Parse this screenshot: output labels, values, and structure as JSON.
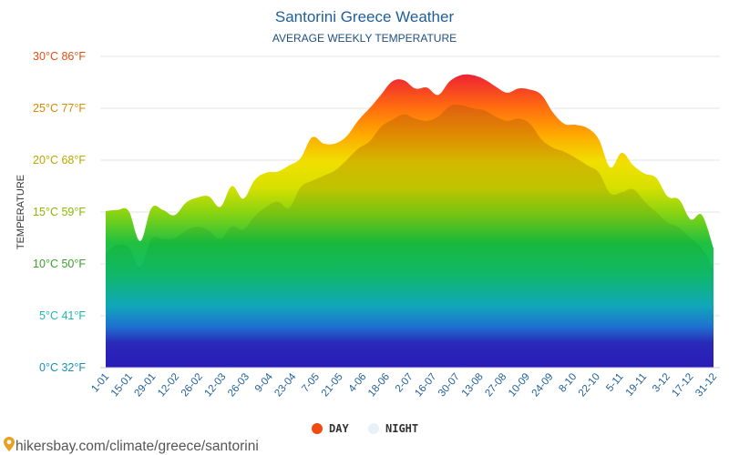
{
  "chart_data": {
    "type": "area",
    "title": "Santorini Greece Weather",
    "subtitle": "AVERAGE WEEKLY TEMPERATURE",
    "ylabel": "TEMPERATURE",
    "ylim": [
      0,
      30
    ],
    "yticks": [
      {
        "value": 0,
        "label": "0°C 32°F",
        "color": "#1a8fb8"
      },
      {
        "value": 5,
        "label": "5°C 41°F",
        "color": "#1ab8b0"
      },
      {
        "value": 10,
        "label": "10°C 50°F",
        "color": "#3aa02a"
      },
      {
        "value": 15,
        "label": "15°C 59°F",
        "color": "#8ab800"
      },
      {
        "value": 20,
        "label": "20°C 68°F",
        "color": "#b8a800"
      },
      {
        "value": 25,
        "label": "25°C 77°F",
        "color": "#d88a00"
      },
      {
        "value": 30,
        "label": "30°C 86°F",
        "color": "#e05010"
      }
    ],
    "x_labels": [
      "1-01",
      "15-01",
      "29-01",
      "12-02",
      "26-02",
      "12-03",
      "26-03",
      "9-04",
      "23-04",
      "7-05",
      "21-05",
      "4-06",
      "18-06",
      "2-07",
      "16-07",
      "30-07",
      "13-08",
      "27-08",
      "10-09",
      "24-09",
      "8-10",
      "22-10",
      "5-11",
      "19-11",
      "3-12",
      "17-12",
      "31-12"
    ],
    "series": [
      {
        "name": "DAY",
        "color": "#f04a10",
        "values": [
          15.1,
          15.2,
          15.1,
          12.2,
          15.4,
          15.2,
          14.7,
          15.9,
          16.4,
          16.5,
          15.5,
          17.5,
          16.3,
          18.1,
          18.8,
          18.9,
          19.5,
          20.2,
          22.2,
          21.6,
          21.6,
          22.3,
          23.8,
          25.0,
          26.3,
          27.6,
          27.7,
          26.9,
          27.0,
          26.3,
          27.6,
          28.2,
          28.2,
          27.8,
          27.1,
          26.5,
          26.9,
          26.8,
          26.3,
          24.6,
          23.5,
          23.4,
          23.1,
          22.0,
          19.3,
          20.7,
          19.5,
          18.7,
          18.3,
          16.5,
          16.2,
          14.3,
          14.7,
          11.5
        ]
      },
      {
        "name": "NIGHT",
        "color": "#e8f0f8",
        "values": [
          11.1,
          11.8,
          11.6,
          9.7,
          12.4,
          12.4,
          12.5,
          13.2,
          13.6,
          13.2,
          12.4,
          13.6,
          13.3,
          14.6,
          15.5,
          16.0,
          15.4,
          17.4,
          18.0,
          18.5,
          19.0,
          20.0,
          21.1,
          21.8,
          23.2,
          23.9,
          24.4,
          24.0,
          23.8,
          24.2,
          25.2,
          25.3,
          25.0,
          24.8,
          24.2,
          23.8,
          24.0,
          23.5,
          22.0,
          21.2,
          20.8,
          20.2,
          19.5,
          18.8,
          16.8,
          16.9,
          17.2,
          16.0,
          15.0,
          14.0,
          13.5,
          12.5,
          11.5,
          9.5
        ]
      }
    ],
    "legend_position": "bottom-center",
    "grid": true
  },
  "footer": {
    "source": "hikersbay.com/climate/greece/santorini",
    "pin_icon": "map-pin-icon"
  }
}
